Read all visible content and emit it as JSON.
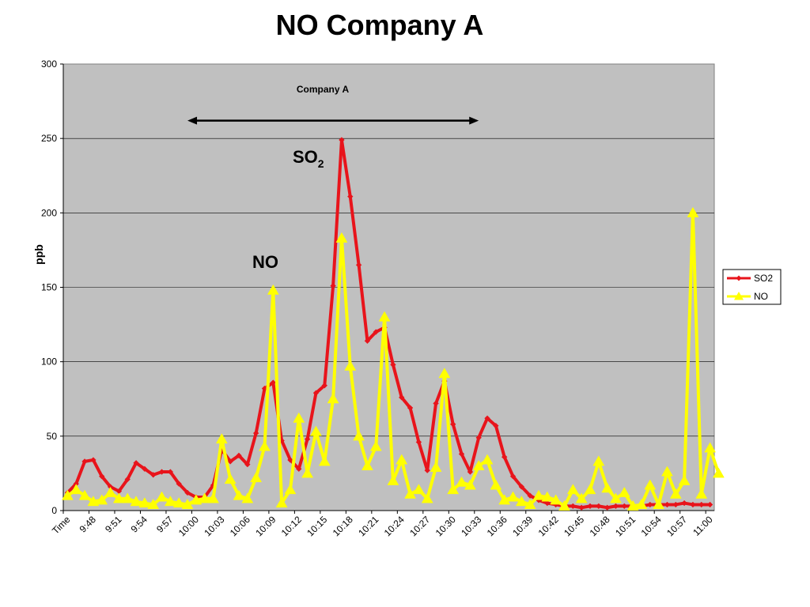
{
  "chart_data": {
    "type": "line",
    "title": "NO Company A",
    "xlabel": "",
    "ylabel": "ppb",
    "ylim": [
      0,
      300
    ],
    "yticks": [
      0,
      50,
      100,
      150,
      200,
      250,
      300
    ],
    "grid": true,
    "legend_position": "right",
    "plot_background": "#c0c0c0",
    "x_tick_labels": [
      "Time",
      "9:48",
      "9:51",
      "9:54",
      "9:57",
      "10:00",
      "10:03",
      "10:06",
      "10:09",
      "10:12",
      "10:15",
      "10:18",
      "10:21",
      "10:24",
      "10:27",
      "10:30",
      "10:33",
      "10:36",
      "10:39",
      "10:42",
      "10:45",
      "10:48",
      "10:51",
      "10:54",
      "10:57",
      "11:00"
    ],
    "series": [
      {
        "name": "SO2",
        "color": "#e8141b",
        "marker": "diamond",
        "values": [
          12,
          18,
          33,
          34,
          23,
          16,
          13,
          21,
          32,
          28,
          24,
          26,
          26,
          18,
          12,
          9,
          9,
          17,
          41,
          33,
          37,
          31,
          52,
          82,
          86,
          47,
          34,
          28,
          48,
          79,
          84,
          151,
          249,
          211,
          165,
          114,
          120,
          123,
          98,
          76,
          69,
          46,
          27,
          72,
          87,
          58,
          38,
          26,
          49,
          62,
          57,
          36,
          23,
          16,
          10,
          7,
          5,
          4,
          3,
          3,
          2,
          3,
          3,
          2,
          3,
          3,
          3,
          3,
          4,
          4,
          4,
          4,
          5,
          4,
          4,
          4
        ]
      },
      {
        "name": "NO",
        "color": "#ffff00",
        "marker": "triangle",
        "values": [
          10,
          14,
          10,
          6,
          7,
          12,
          8,
          8,
          6,
          5,
          4,
          9,
          6,
          5,
          4,
          7,
          8,
          8,
          48,
          21,
          10,
          8,
          22,
          43,
          148,
          5,
          14,
          62,
          25,
          53,
          33,
          75,
          183,
          97,
          50,
          30,
          43,
          130,
          20,
          34,
          11,
          14,
          8,
          29,
          92,
          14,
          19,
          17,
          30,
          34,
          17,
          7,
          9,
          6,
          4,
          10,
          9,
          7,
          3,
          14,
          8,
          14,
          33,
          15,
          8,
          12,
          3,
          4,
          17,
          4,
          26,
          11,
          20,
          200,
          11,
          42,
          25
        ]
      }
    ],
    "annotations": {
      "arrow_label": "Company A",
      "arrow_from_category": 14.5,
      "arrow_to_category": 48.5,
      "arrow_y": 262,
      "so2_label_main": "SO",
      "so2_label_sub": "2",
      "no_label": "NO"
    }
  }
}
